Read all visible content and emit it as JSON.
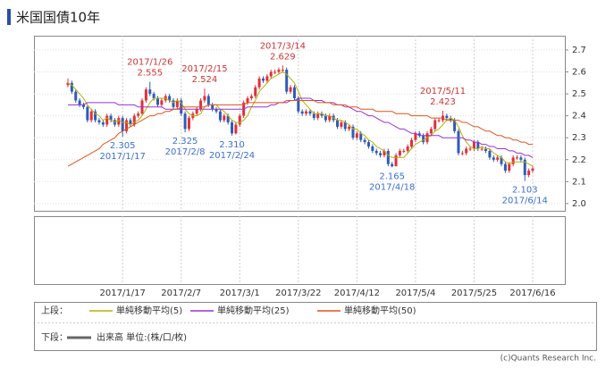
{
  "chart_data": {
    "type": "candlestick",
    "title": "米国国債10年",
    "categories": [
      null,
      null,
      null,
      null,
      null,
      null,
      null,
      null,
      null,
      null,
      null,
      null,
      null,
      null,
      "2017/1/17",
      null,
      null,
      null,
      null,
      null,
      null,
      null,
      null,
      null,
      null,
      null,
      null,
      null,
      null,
      "2017/2/7",
      null,
      null,
      null,
      null,
      null,
      null,
      null,
      null,
      null,
      null,
      null,
      null,
      null,
      null,
      "2017/3/1",
      null,
      null,
      null,
      null,
      null,
      null,
      null,
      null,
      null,
      null,
      null,
      null,
      null,
      null,
      "2017/3/22",
      null,
      null,
      null,
      null,
      null,
      null,
      null,
      null,
      null,
      null,
      null,
      null,
      null,
      null,
      "2017/4/12",
      null,
      null,
      null,
      null,
      null,
      null,
      null,
      null,
      null,
      null,
      null,
      null,
      null,
      null,
      "2017/5/4",
      null,
      null,
      null,
      null,
      null,
      null,
      null,
      null,
      null,
      null,
      null,
      null,
      null,
      null,
      "2017/5/25",
      null,
      null,
      null,
      null,
      null,
      null,
      null,
      null,
      null,
      null,
      null,
      null,
      null,
      null,
      "2017/6/16"
    ],
    "open": [
      2.54,
      2.55,
      2.51,
      2.47,
      2.45,
      2.44,
      2.38,
      2.42,
      2.38,
      2.37,
      2.36,
      2.4,
      2.38,
      2.36,
      2.39,
      2.33,
      2.38,
      2.36,
      2.4,
      2.41,
      2.47,
      2.52,
      2.5,
      2.48,
      2.45,
      2.47,
      2.49,
      2.47,
      2.44,
      2.47,
      2.41,
      2.34,
      2.39,
      2.41,
      2.43,
      2.47,
      2.49,
      2.45,
      2.43,
      2.42,
      2.38,
      2.4,
      2.37,
      2.32,
      2.36,
      2.4,
      2.46,
      2.48,
      2.49,
      2.53,
      2.57,
      2.56,
      2.58,
      2.6,
      2.6,
      2.61,
      2.61,
      2.51,
      2.53,
      2.48,
      2.42,
      2.41,
      2.42,
      2.41,
      2.39,
      2.41,
      2.4,
      2.38,
      2.4,
      2.38,
      2.35,
      2.37,
      2.34,
      2.35,
      2.3,
      2.32,
      2.29,
      2.28,
      2.26,
      2.24,
      2.23,
      2.22,
      2.24,
      2.18,
      2.17,
      2.22,
      2.24,
      2.24,
      2.26,
      2.29,
      2.32,
      2.31,
      2.28,
      2.32,
      2.34,
      2.38,
      2.38,
      2.4,
      2.39,
      2.38,
      2.33,
      2.23,
      2.23,
      2.25,
      2.25,
      2.28,
      2.25,
      2.25,
      2.24,
      2.21,
      2.2,
      2.21,
      2.18,
      2.15,
      2.18,
      2.21,
      2.21,
      2.2,
      2.13,
      2.15
    ],
    "high": [
      2.57,
      2.56,
      2.52,
      2.48,
      2.46,
      2.45,
      2.43,
      2.43,
      2.39,
      2.38,
      2.41,
      2.41,
      2.39,
      2.4,
      2.4,
      2.39,
      2.39,
      2.41,
      2.42,
      2.48,
      2.53,
      2.555,
      2.51,
      2.49,
      2.48,
      2.5,
      2.5,
      2.48,
      2.48,
      2.48,
      2.42,
      2.4,
      2.42,
      2.44,
      2.48,
      2.524,
      2.5,
      2.46,
      2.44,
      2.43,
      2.41,
      2.41,
      2.38,
      2.37,
      2.41,
      2.47,
      2.49,
      2.5,
      2.54,
      2.58,
      2.58,
      2.59,
      2.61,
      2.61,
      2.62,
      2.629,
      2.62,
      2.54,
      2.54,
      2.49,
      2.43,
      2.43,
      2.43,
      2.42,
      2.42,
      2.42,
      2.41,
      2.41,
      2.41,
      2.39,
      2.38,
      2.38,
      2.36,
      2.36,
      2.33,
      2.33,
      2.3,
      2.29,
      2.27,
      2.25,
      2.24,
      2.25,
      2.25,
      2.19,
      2.23,
      2.25,
      2.25,
      2.27,
      2.3,
      2.33,
      2.33,
      2.32,
      2.33,
      2.35,
      2.39,
      2.39,
      2.423,
      2.41,
      2.4,
      2.39,
      2.34,
      2.24,
      2.26,
      2.26,
      2.29,
      2.29,
      2.26,
      2.26,
      2.25,
      2.22,
      2.22,
      2.22,
      2.19,
      2.19,
      2.22,
      2.22,
      2.22,
      2.21,
      2.16,
      2.17
    ],
    "low": [
      2.53,
      2.5,
      2.46,
      2.44,
      2.43,
      2.37,
      2.37,
      2.37,
      2.36,
      2.35,
      2.35,
      2.37,
      2.35,
      2.35,
      2.305,
      2.32,
      2.35,
      2.35,
      2.39,
      2.4,
      2.46,
      2.49,
      2.47,
      2.44,
      2.44,
      2.46,
      2.46,
      2.43,
      2.43,
      2.4,
      2.325,
      2.33,
      2.38,
      2.4,
      2.42,
      2.46,
      2.44,
      2.42,
      2.41,
      2.37,
      2.37,
      2.36,
      2.31,
      2.315,
      2.35,
      2.39,
      2.45,
      2.47,
      2.48,
      2.52,
      2.55,
      2.55,
      2.57,
      2.59,
      2.59,
      2.6,
      2.5,
      2.5,
      2.47,
      2.41,
      2.4,
      2.4,
      2.4,
      2.38,
      2.38,
      2.39,
      2.37,
      2.37,
      2.37,
      2.34,
      2.34,
      2.33,
      2.33,
      2.29,
      2.29,
      2.28,
      2.27,
      2.25,
      2.23,
      2.22,
      2.21,
      2.21,
      2.17,
      2.165,
      2.17,
      2.21,
      2.23,
      2.23,
      2.25,
      2.28,
      2.3,
      2.27,
      2.27,
      2.31,
      2.33,
      2.37,
      2.37,
      2.38,
      2.37,
      2.32,
      2.22,
      2.22,
      2.22,
      2.24,
      2.24,
      2.24,
      2.24,
      2.23,
      2.2,
      2.19,
      2.19,
      2.17,
      2.14,
      2.14,
      2.17,
      2.2,
      2.19,
      2.103,
      2.12,
      2.14
    ],
    "close": [
      2.55,
      2.51,
      2.47,
      2.45,
      2.44,
      2.38,
      2.42,
      2.38,
      2.37,
      2.36,
      2.4,
      2.38,
      2.36,
      2.39,
      2.33,
      2.38,
      2.36,
      2.4,
      2.41,
      2.47,
      2.52,
      2.5,
      2.48,
      2.45,
      2.47,
      2.49,
      2.47,
      2.44,
      2.47,
      2.41,
      2.34,
      2.39,
      2.41,
      2.43,
      2.47,
      2.49,
      2.45,
      2.43,
      2.42,
      2.38,
      2.4,
      2.37,
      2.32,
      2.36,
      2.4,
      2.46,
      2.48,
      2.49,
      2.53,
      2.57,
      2.56,
      2.58,
      2.6,
      2.6,
      2.61,
      2.61,
      2.51,
      2.53,
      2.48,
      2.42,
      2.41,
      2.42,
      2.41,
      2.39,
      2.41,
      2.4,
      2.38,
      2.4,
      2.38,
      2.35,
      2.37,
      2.34,
      2.35,
      2.3,
      2.32,
      2.29,
      2.28,
      2.26,
      2.24,
      2.23,
      2.22,
      2.24,
      2.18,
      2.17,
      2.22,
      2.24,
      2.24,
      2.26,
      2.29,
      2.32,
      2.31,
      2.28,
      2.32,
      2.34,
      2.38,
      2.38,
      2.4,
      2.39,
      2.38,
      2.33,
      2.23,
      2.23,
      2.25,
      2.25,
      2.28,
      2.25,
      2.25,
      2.24,
      2.21,
      2.2,
      2.21,
      2.18,
      2.15,
      2.18,
      2.21,
      2.21,
      2.2,
      2.13,
      2.15,
      2.16
    ],
    "up_color": "#e0303a",
    "down_color": "#2f5bb8",
    "series": [
      {
        "name": "単純移動平均(5)",
        "color": "#b5b000",
        "values": [
          2.55,
          2.54,
          2.52,
          2.5,
          2.48,
          2.45,
          2.43,
          2.41,
          2.4,
          2.38,
          2.39,
          2.38,
          2.37,
          2.38,
          2.37,
          2.37,
          2.36,
          2.37,
          2.38,
          2.4,
          2.43,
          2.46,
          2.48,
          2.48,
          2.48,
          2.48,
          2.47,
          2.46,
          2.47,
          2.46,
          2.43,
          2.41,
          2.4,
          2.4,
          2.41,
          2.44,
          2.45,
          2.45,
          2.45,
          2.43,
          2.42,
          2.4,
          2.38,
          2.37,
          2.37,
          2.38,
          2.4,
          2.44,
          2.47,
          2.51,
          2.53,
          2.55,
          2.57,
          2.58,
          2.59,
          2.6,
          2.59,
          2.57,
          2.55,
          2.51,
          2.47,
          2.45,
          2.43,
          2.41,
          2.41,
          2.41,
          2.4,
          2.4,
          2.39,
          2.38,
          2.38,
          2.37,
          2.36,
          2.34,
          2.34,
          2.32,
          2.31,
          2.29,
          2.28,
          2.26,
          2.25,
          2.24,
          2.22,
          2.21,
          2.21,
          2.21,
          2.21,
          2.23,
          2.25,
          2.27,
          2.28,
          2.29,
          2.3,
          2.31,
          2.33,
          2.34,
          2.36,
          2.38,
          2.39,
          2.38,
          2.35,
          2.31,
          2.28,
          2.26,
          2.25,
          2.25,
          2.26,
          2.25,
          2.25,
          2.23,
          2.22,
          2.21,
          2.19,
          2.18,
          2.19,
          2.19,
          2.19,
          2.19,
          2.18,
          2.17
        ]
      },
      {
        "name": "単純移動平均(25)",
        "color": "#9b30d0",
        "values": [
          2.45,
          2.45,
          2.45,
          2.45,
          2.45,
          2.46,
          2.46,
          2.46,
          2.46,
          2.46,
          2.46,
          2.46,
          2.46,
          2.45,
          2.45,
          2.45,
          2.45,
          2.45,
          2.44,
          2.44,
          2.44,
          2.44,
          2.44,
          2.44,
          2.44,
          2.43,
          2.43,
          2.43,
          2.43,
          2.43,
          2.43,
          2.43,
          2.43,
          2.43,
          2.43,
          2.43,
          2.43,
          2.43,
          2.43,
          2.43,
          2.43,
          2.43,
          2.43,
          2.43,
          2.43,
          2.43,
          2.44,
          2.44,
          2.44,
          2.44,
          2.44,
          2.44,
          2.45,
          2.45,
          2.46,
          2.46,
          2.46,
          2.47,
          2.47,
          2.48,
          2.48,
          2.48,
          2.48,
          2.47,
          2.47,
          2.47,
          2.46,
          2.46,
          2.46,
          2.45,
          2.45,
          2.44,
          2.44,
          2.43,
          2.42,
          2.42,
          2.41,
          2.4,
          2.4,
          2.39,
          2.38,
          2.37,
          2.37,
          2.36,
          2.35,
          2.34,
          2.34,
          2.33,
          2.32,
          2.32,
          2.31,
          2.31,
          2.31,
          2.31,
          2.31,
          2.31,
          2.3,
          2.3,
          2.3,
          2.3,
          2.3,
          2.3,
          2.29,
          2.29,
          2.28,
          2.28,
          2.27,
          2.27,
          2.26,
          2.26,
          2.25,
          2.25,
          2.25,
          2.24,
          2.24,
          2.23,
          2.23,
          2.22,
          2.22,
          2.21
        ]
      },
      {
        "name": "単純移動平均(50)",
        "color": "#e0541c",
        "values": [
          2.17,
          2.18,
          2.19,
          2.2,
          2.21,
          2.22,
          2.23,
          2.24,
          2.25,
          2.27,
          2.28,
          2.29,
          2.3,
          2.32,
          2.33,
          2.34,
          2.35,
          2.36,
          2.37,
          2.38,
          2.39,
          2.4,
          2.4,
          2.41,
          2.41,
          2.42,
          2.42,
          2.43,
          2.43,
          2.44,
          2.44,
          2.44,
          2.44,
          2.44,
          2.44,
          2.44,
          2.45,
          2.45,
          2.45,
          2.45,
          2.45,
          2.45,
          2.45,
          2.45,
          2.45,
          2.45,
          2.46,
          2.46,
          2.46,
          2.46,
          2.46,
          2.46,
          2.46,
          2.46,
          2.46,
          2.46,
          2.47,
          2.47,
          2.47,
          2.47,
          2.47,
          2.47,
          2.47,
          2.47,
          2.46,
          2.46,
          2.46,
          2.46,
          2.45,
          2.45,
          2.45,
          2.45,
          2.44,
          2.44,
          2.44,
          2.43,
          2.43,
          2.43,
          2.43,
          2.42,
          2.42,
          2.42,
          2.42,
          2.42,
          2.41,
          2.41,
          2.41,
          2.41,
          2.4,
          2.4,
          2.4,
          2.4,
          2.4,
          2.39,
          2.39,
          2.39,
          2.39,
          2.38,
          2.38,
          2.38,
          2.38,
          2.37,
          2.37,
          2.36,
          2.35,
          2.35,
          2.34,
          2.33,
          2.33,
          2.32,
          2.31,
          2.31,
          2.3,
          2.3,
          2.29,
          2.29,
          2.28,
          2.28,
          2.27,
          2.27
        ]
      }
    ],
    "annotations": [
      {
        "date": "2017/1/26",
        "value": 2.555
      },
      {
        "date": "2017/2/15",
        "value": 2.524
      },
      {
        "date": "2017/3/14",
        "value": 2.629
      },
      {
        "date": "2017/5/11",
        "value": 2.423
      },
      {
        "date": "2017/1/17",
        "value": 2.305
      },
      {
        "date": "2017/2/8",
        "value": 2.325
      },
      {
        "date": "2017/2/24",
        "value": 2.31,
        "label": "2.310"
      },
      {
        "date": "2017/4/18",
        "value": 2.165
      },
      {
        "date": "2017/6/14",
        "value": 2.103
      }
    ],
    "high_label_color": "#cc3333",
    "low_label_color": "#3a6fd0",
    "ylim": [
      1.967,
      2.765
    ],
    "yticks": [
      {
        "value": 2,
        "label": "2.0"
      },
      2.1,
      2.2,
      2.3,
      2.4,
      2.5,
      2.6,
      2.7
    ],
    "grid": true,
    "upper_label": "上段：",
    "lower_label": "下段：",
    "volume_legend": "出来高 単位:(株/口/枚)",
    "volume_color": "#666666",
    "credit": "(c)Quants Research Inc."
  }
}
